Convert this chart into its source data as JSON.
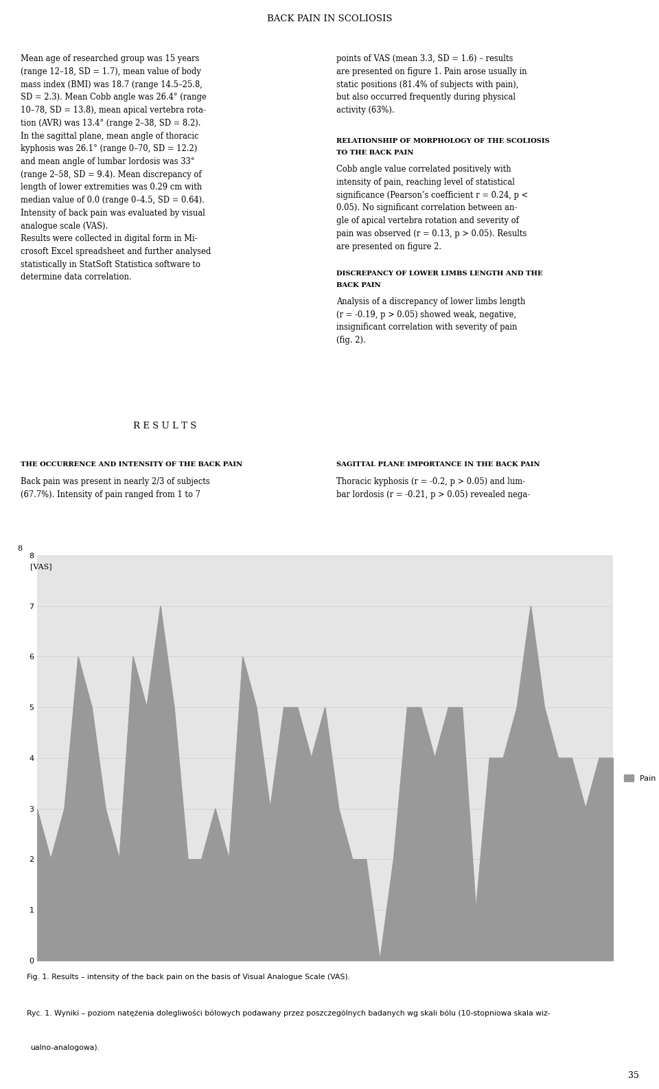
{
  "title": "BACK PAIN IN SCOLIOSIS",
  "chart_ylabel": "[VAS]",
  "chart_legend": "Pain Level",
  "chart_ylim": [
    0,
    8
  ],
  "chart_yticks": [
    0,
    1,
    2,
    3,
    4,
    5,
    6,
    7,
    8
  ],
  "chart_color": "#999999",
  "chart_bg": "#e5e5e5",
  "pain_values": [
    3,
    2,
    3,
    6,
    5,
    3,
    2,
    6,
    5,
    7,
    5,
    2,
    2,
    3,
    2,
    6,
    5,
    3,
    5,
    5,
    4,
    5,
    3,
    2,
    2,
    0,
    2,
    5,
    5,
    4,
    5,
    5,
    1,
    4,
    4,
    5,
    7,
    5,
    4,
    4,
    3,
    4,
    4
  ],
  "background_color": "#ffffff",
  "results_bg": "#cccccc",
  "caption_bg": "#eeeeee",
  "page_number": "35",
  "left_col_lines": [
    "Mean age of researched group was 15 years",
    "(range 12–18, SD = 1.7), mean value of body",
    "mass index (BMI) was 18.7 (range 14.5–25.8,",
    "SD = 2.3). Mean Cobb angle was 26.4° (range",
    "10–78, SD = 13.8), mean apical vertebra rota-",
    "tion (AVR) was 13.4° (range 2–38, SD = 8.2).",
    "In the sagittal plane, mean angle of thoracic",
    "kyphosis was 26.1° (range 0–70, SD = 12.2)",
    "and mean angle of lumbar lordosis was 33°",
    "(range 2–58, SD = 9.4). Mean discrepancy of",
    "length of lower extremities was 0.29 cm with",
    "median value of 0.0 (range 0–4.5, SD = 0.64).",
    "Intensity of back pain was evaluated by visual",
    "analogue scale (VAS).",
    "Results were collected in digital form in Mi-",
    "crosoft Excel spreadsheet and further analysed",
    "statistically in StatSoft Statistica software to",
    "determine data correlation."
  ],
  "right_col_lines_1": [
    "points of VAS (mean 3.3, SD = 1.6) – results",
    "are presented on figure 1. Pain arose usually in",
    "static positions (81.4% of subjects with pain),",
    "but also occurred frequently during physical",
    "activity (63%)."
  ],
  "right_col_header2": "RELATIONSHIP OF MORPHOLOGY OF THE SCOLIOSIS",
  "right_col_header2b": "TO THE BACK PAIN",
  "right_col_lines_2": [
    "Cobb angle value correlated positively with",
    "intensity of pain, reaching level of statistical",
    "significance (Pearson’s coefficient r = 0.24, p <",
    "0.05). No significant correlation between an-",
    "gle of apical vertebra rotation and severity of",
    "pain was observed (r = 0.13, p > 0.05). Results",
    "are presented on figure 2."
  ],
  "right_col_header3": "DISCREPANCY OF LOWER LIMBS LENGTH AND THE",
  "right_col_header3b": "BACK PAIN",
  "right_col_lines_3": [
    "Analysis of a discrepancy of lower limbs length",
    "(r = -0.19, p > 0.05) showed weak, negative,",
    "insignificant correlation with severity of pain",
    "(fig. 2)."
  ],
  "left_col_header4": "THE OCCURRENCE AND INTENSITY OF THE BACK PAIN",
  "left_col_lines_4": [
    "Back pain was present in nearly 2/3 of subjects",
    "(67.7%). Intensity of pain ranged from 1 to 7"
  ],
  "right_col_header4": "SAGITTAL PLANE IMPORTANCE IN THE BACK PAIN",
  "right_col_lines_4": [
    "Thoracic kyphosis (r = -0.2, p > 0.05) and lum-",
    "bar lordosis (r = -0.21, p > 0.05) revealed nega-"
  ],
  "results_label": "R E S U L T S",
  "fig1_caption_bold": "Fig. 1.",
  "fig1_caption_rest": " Results – intensity of the back pain on the basis of Visual Analogue Scale (VAS).",
  "ryc1_caption_bold": "Ryc. 1.",
  "ryc1_caption_rest": " Wyniki – poziom natężenia dolegliwości bólowych podawany przez poszczególnych badanych wg skali bólu (10-stopniowa skala wiz-",
  "ryc1_caption_rest2": "ualno-analogowa)."
}
